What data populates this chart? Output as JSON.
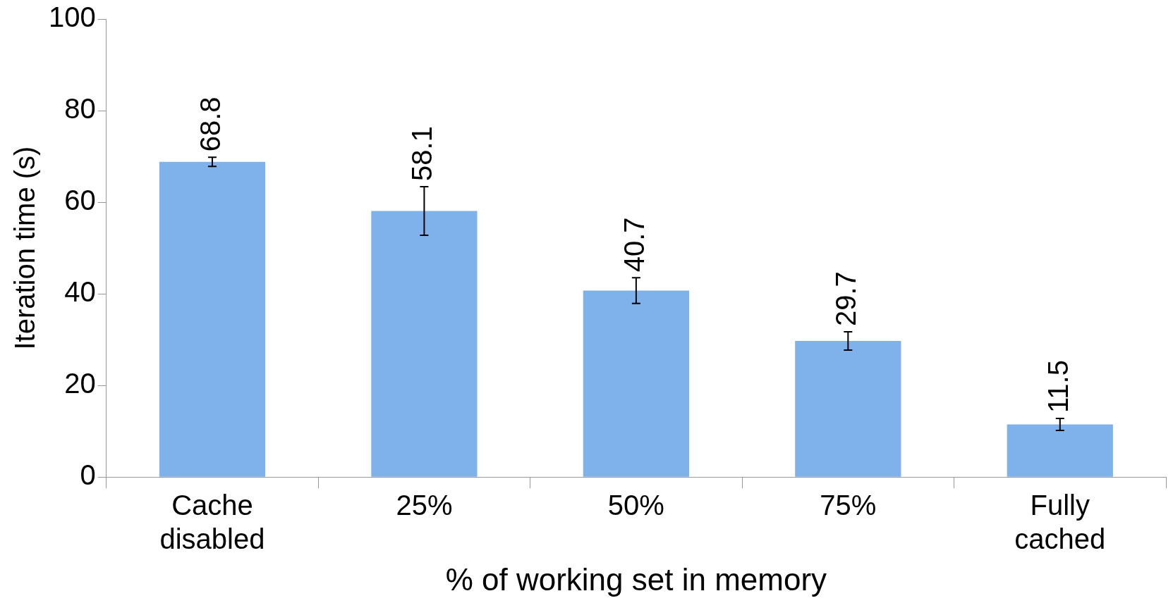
{
  "chart_data": {
    "type": "bar",
    "xlabel": "% of working set in memory",
    "ylabel": "Iteration time (s)",
    "categories": [
      "Cache disabled",
      "25%",
      "50%",
      "75%",
      "Fully cached"
    ],
    "values": [
      68.8,
      58.1,
      40.7,
      29.7,
      11.5
    ],
    "errors": [
      1.0,
      5.3,
      2.8,
      2.0,
      1.3
    ],
    "color": "#7fb2ea",
    "ylim": [
      0,
      100
    ],
    "yticks": [
      0,
      20,
      40,
      60,
      80,
      100
    ],
    "grid": false,
    "legend": false,
    "data_labels": true
  }
}
